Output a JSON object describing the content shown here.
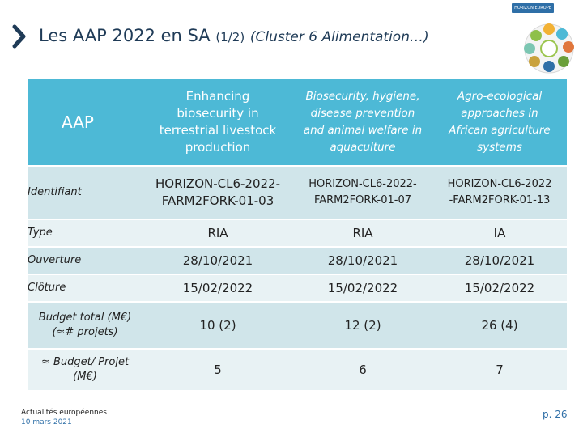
{
  "title": {
    "main": "Les AAP 2022 en SA",
    "part": "(1/2)",
    "cluster": "(Cluster 6 Alimentation…)"
  },
  "logo": {
    "tag": "HORIZON EUROPE",
    "icon": "cluster-wheel-icon"
  },
  "table": {
    "header": {
      "label": "AAP",
      "columns": [
        {
          "lines": [
            "Enhancing",
            "biosecurity in",
            "terrestrial livestock",
            "production"
          ]
        },
        {
          "lines": [
            "Biosecurity, hygiene,",
            "disease prevention",
            "and animal welfare in",
            "aquaculture"
          ]
        },
        {
          "lines": [
            "Agro-ecological",
            "approaches in",
            "African agriculture",
            "systems"
          ]
        }
      ]
    },
    "rows": [
      {
        "label": [
          "Identifiant"
        ],
        "values": [
          [
            "HORIZON-CL6-2022-",
            "FARM2FORK-01-03"
          ],
          [
            "HORIZON-CL6-2022-",
            "FARM2FORK-01-07"
          ],
          [
            "HORIZON-CL6-2022",
            "-FARM2FORK-01-13"
          ]
        ]
      },
      {
        "label": [
          "Type"
        ],
        "values": [
          [
            "RIA"
          ],
          [
            "RIA"
          ],
          [
            "IA"
          ]
        ]
      },
      {
        "label": [
          "Ouverture"
        ],
        "values": [
          [
            "28/10/2021"
          ],
          [
            "28/10/2021"
          ],
          [
            "28/10/2021"
          ]
        ]
      },
      {
        "label": [
          "Clôture"
        ],
        "values": [
          [
            "15/02/2022"
          ],
          [
            "15/02/2022"
          ],
          [
            "15/02/2022"
          ]
        ]
      },
      {
        "label": [
          "Budget total (M€)",
          "(≈# projets)"
        ],
        "values": [
          [
            "10 (2)"
          ],
          [
            "12 (2)"
          ],
          [
            "26 (4)"
          ]
        ]
      },
      {
        "label": [
          "≈ Budget/ Projet",
          "(M€)"
        ],
        "values": [
          [
            "5"
          ],
          [
            "6"
          ],
          [
            "7"
          ]
        ]
      }
    ]
  },
  "footer": {
    "source": "Actualités européennes",
    "date": "10 mars 2021",
    "page": "p. 26"
  },
  "colors": {
    "header_bg": "#4db9d6",
    "row_a": "#d0e5ea",
    "row_b": "#e8f2f4",
    "accent": "#2f6fa7"
  }
}
